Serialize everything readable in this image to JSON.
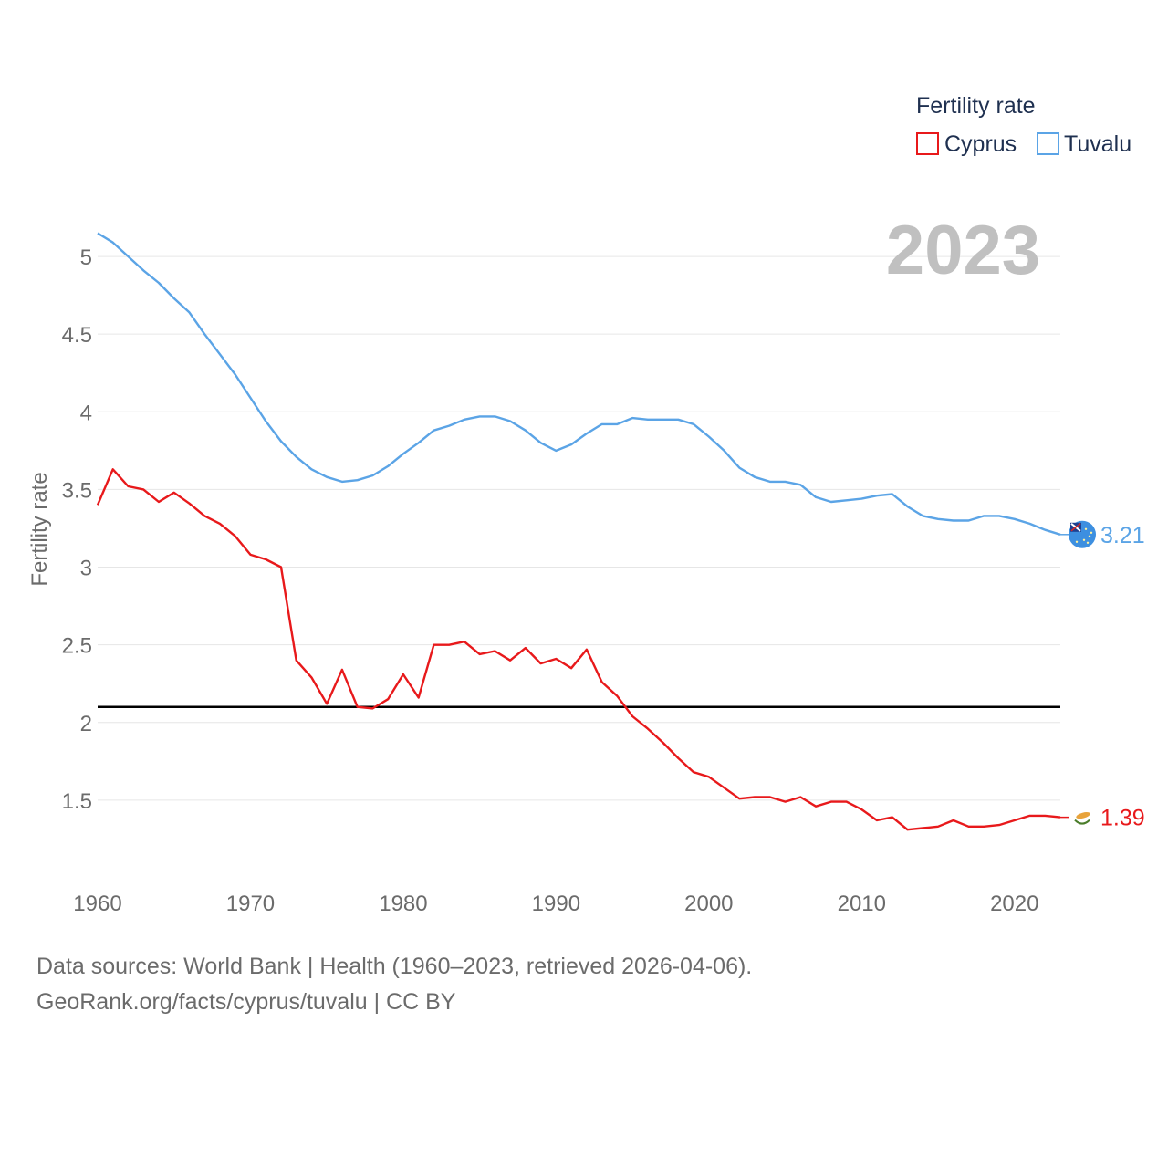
{
  "chart_data": {
    "type": "line",
    "legend_title": "Fertility rate",
    "ylabel": "Fertility rate",
    "year_label": "2023",
    "ylim": [
      1.0,
      5.3
    ],
    "xlim": [
      1960,
      2023
    ],
    "yticks": [
      1.5,
      2,
      2.5,
      3,
      3.5,
      4,
      4.5,
      5
    ],
    "ytick_labels": [
      "1.5",
      "2",
      "2.5",
      "3",
      "3.5",
      "4",
      "4.5",
      "5"
    ],
    "xticks": [
      1960,
      1970,
      1980,
      1990,
      2000,
      2010,
      2020
    ],
    "xtick_labels": [
      "1960",
      "1970",
      "1980",
      "1990",
      "2000",
      "2010",
      "2020"
    ],
    "reference_line": 2.1,
    "x": [
      1960,
      1961,
      1962,
      1963,
      1964,
      1965,
      1966,
      1967,
      1968,
      1969,
      1970,
      1971,
      1972,
      1973,
      1974,
      1975,
      1976,
      1977,
      1978,
      1979,
      1980,
      1981,
      1982,
      1983,
      1984,
      1985,
      1986,
      1987,
      1988,
      1989,
      1990,
      1991,
      1992,
      1993,
      1994,
      1995,
      1996,
      1997,
      1998,
      1999,
      2000,
      2001,
      2002,
      2003,
      2004,
      2005,
      2006,
      2007,
      2008,
      2009,
      2010,
      2011,
      2012,
      2013,
      2014,
      2015,
      2016,
      2017,
      2018,
      2019,
      2020,
      2021,
      2022,
      2023
    ],
    "series": [
      {
        "name": "Cyprus",
        "color": "#e8191b",
        "end_label": "1.39",
        "values": [
          3.4,
          3.63,
          3.52,
          3.5,
          3.42,
          3.48,
          3.41,
          3.33,
          3.28,
          3.2,
          3.08,
          3.05,
          3.0,
          2.4,
          2.29,
          2.12,
          2.34,
          2.1,
          2.09,
          2.15,
          2.31,
          2.16,
          2.5,
          2.5,
          2.52,
          2.44,
          2.46,
          2.4,
          2.48,
          2.38,
          2.41,
          2.35,
          2.47,
          2.26,
          2.17,
          2.04,
          1.96,
          1.87,
          1.77,
          1.68,
          1.65,
          1.58,
          1.51,
          1.52,
          1.52,
          1.49,
          1.52,
          1.46,
          1.49,
          1.49,
          1.44,
          1.37,
          1.39,
          1.31,
          1.32,
          1.33,
          1.37,
          1.33,
          1.33,
          1.34,
          1.37,
          1.4,
          1.4,
          1.39
        ]
      },
      {
        "name": "Tuvalu",
        "color": "#5ba4e6",
        "end_label": "3.21",
        "values": [
          5.15,
          5.09,
          5.0,
          4.91,
          4.83,
          4.73,
          4.64,
          4.5,
          4.37,
          4.24,
          4.09,
          3.94,
          3.81,
          3.71,
          3.63,
          3.58,
          3.55,
          3.56,
          3.59,
          3.65,
          3.73,
          3.8,
          3.88,
          3.91,
          3.95,
          3.97,
          3.97,
          3.94,
          3.88,
          3.8,
          3.75,
          3.79,
          3.86,
          3.92,
          3.92,
          3.96,
          3.95,
          3.95,
          3.95,
          3.92,
          3.84,
          3.75,
          3.64,
          3.58,
          3.55,
          3.55,
          3.53,
          3.45,
          3.42,
          3.43,
          3.44,
          3.46,
          3.47,
          3.39,
          3.33,
          3.31,
          3.3,
          3.3,
          3.33,
          3.33,
          3.31,
          3.28,
          3.24,
          3.21
        ]
      }
    ]
  },
  "footer": {
    "line1": "Data sources: World Bank | Health (1960–2023, retrieved 2026-04-06).",
    "line2": "GeoRank.org/facts/cyprus/tuvalu | CC BY"
  },
  "flags": {
    "cyprus": "cyprus-flag-icon",
    "tuvalu": "tuvalu-flag-icon"
  }
}
